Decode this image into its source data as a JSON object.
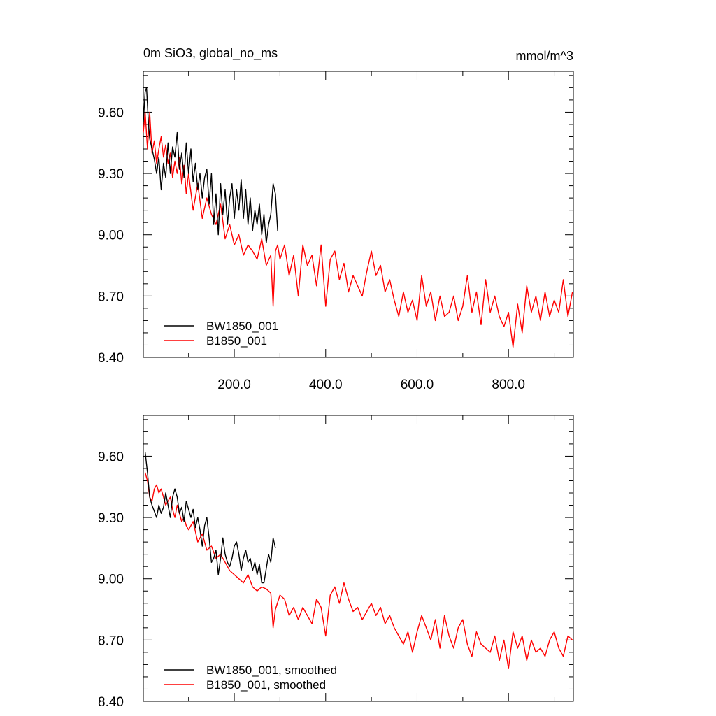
{
  "chart_data": [
    {
      "type": "line",
      "title": "0m SiO3, global_no_ms",
      "units": "mmol/m^3",
      "xlabel": "",
      "ylabel": "",
      "xlim": [
        1,
        942
      ],
      "ylim": [
        8.4,
        9.8
      ],
      "yticks": [
        8.4,
        8.7,
        9.0,
        9.3,
        9.6
      ],
      "ytick_labels": [
        "8.40",
        "8.70",
        "9.00",
        "9.30",
        "9.60"
      ],
      "xticks": [
        200,
        400,
        600,
        800
      ],
      "xtick_labels": [
        "200.0",
        "400.0",
        "600.0",
        "800.0"
      ],
      "legend_position": "bottom-left",
      "series": [
        {
          "name": "BW1850_001",
          "color": "#000000",
          "x": [
            1,
            5,
            8,
            12,
            15,
            20,
            25,
            30,
            35,
            40,
            45,
            50,
            55,
            60,
            65,
            70,
            75,
            80,
            85,
            90,
            95,
            100,
            105,
            110,
            115,
            120,
            125,
            130,
            135,
            140,
            145,
            150,
            155,
            160,
            165,
            170,
            175,
            180,
            185,
            190,
            195,
            200,
            205,
            210,
            215,
            220,
            225,
            230,
            235,
            240,
            245,
            250,
            255,
            260,
            265,
            270,
            275,
            280,
            285,
            290,
            295
          ],
          "y": [
            9.55,
            9.7,
            9.72,
            9.55,
            9.47,
            9.42,
            9.37,
            9.3,
            9.38,
            9.22,
            9.35,
            9.28,
            9.45,
            9.3,
            9.43,
            9.38,
            9.5,
            9.32,
            9.4,
            9.28,
            9.45,
            9.3,
            9.42,
            9.26,
            9.35,
            9.22,
            9.3,
            9.18,
            9.28,
            9.32,
            9.15,
            9.3,
            9.05,
            9.2,
            9.0,
            9.25,
            9.1,
            9.22,
            9.05,
            9.18,
            9.25,
            9.08,
            9.22,
            9.12,
            9.27,
            9.08,
            9.22,
            9.05,
            9.18,
            9.02,
            9.12,
            9.05,
            9.15,
            9.0,
            9.1,
            8.96,
            9.05,
            9.1,
            9.25,
            9.2,
            9.02
          ]
        },
        {
          "name": "B1850_001",
          "color": "#ff0000",
          "x": [
            1,
            5,
            10,
            15,
            20,
            25,
            30,
            35,
            40,
            45,
            50,
            55,
            60,
            65,
            70,
            75,
            80,
            85,
            90,
            95,
            100,
            110,
            120,
            130,
            140,
            150,
            160,
            170,
            180,
            190,
            200,
            210,
            220,
            230,
            240,
            250,
            260,
            270,
            280,
            285,
            290,
            295,
            300,
            310,
            320,
            330,
            340,
            350,
            360,
            370,
            380,
            390,
            400,
            410,
            420,
            430,
            440,
            450,
            460,
            470,
            480,
            490,
            500,
            510,
            520,
            530,
            540,
            550,
            560,
            570,
            580,
            590,
            600,
            610,
            620,
            630,
            640,
            650,
            660,
            670,
            680,
            690,
            700,
            710,
            720,
            730,
            740,
            750,
            760,
            770,
            780,
            790,
            800,
            810,
            820,
            830,
            840,
            850,
            860,
            870,
            880,
            890,
            900,
            910,
            920,
            930,
            940
          ],
          "y": [
            9.5,
            9.6,
            9.42,
            9.6,
            9.4,
            9.46,
            9.35,
            9.42,
            9.48,
            9.38,
            9.44,
            9.35,
            9.4,
            9.28,
            9.36,
            9.3,
            9.38,
            9.25,
            9.34,
            9.2,
            9.3,
            9.12,
            9.25,
            9.08,
            9.18,
            9.1,
            9.05,
            9.15,
            8.98,
            9.05,
            8.95,
            9.0,
            8.9,
            8.95,
            8.92,
            8.88,
            8.98,
            8.85,
            8.9,
            8.65,
            8.92,
            8.95,
            8.88,
            8.95,
            8.8,
            8.9,
            8.7,
            8.95,
            8.85,
            8.9,
            8.75,
            8.95,
            8.65,
            8.88,
            8.92,
            8.78,
            8.86,
            8.72,
            8.8,
            8.75,
            8.7,
            8.82,
            8.92,
            8.8,
            8.85,
            8.72,
            8.78,
            8.68,
            8.6,
            8.72,
            8.62,
            8.68,
            8.58,
            8.8,
            8.65,
            8.72,
            8.58,
            8.7,
            8.6,
            8.62,
            8.7,
            8.58,
            8.65,
            8.8,
            8.62,
            8.72,
            8.56,
            8.78,
            8.62,
            8.7,
            8.6,
            8.55,
            8.62,
            8.45,
            8.66,
            8.52,
            8.75,
            8.62,
            8.7,
            8.58,
            8.72,
            8.6,
            8.68,
            8.62,
            8.78,
            8.6,
            8.72
          ]
        }
      ]
    },
    {
      "type": "line",
      "title": "",
      "xlabel": "",
      "ylabel": "",
      "xlim": [
        1,
        942
      ],
      "ylim": [
        8.4,
        9.8
      ],
      "yticks": [
        8.4,
        8.7,
        9.0,
        9.3,
        9.6
      ],
      "ytick_labels": [
        "8.40",
        "8.70",
        "9.00",
        "9.30",
        "9.60"
      ],
      "xticks": [
        200,
        400,
        600,
        800
      ],
      "legend_position": "bottom-left",
      "series": [
        {
          "name": "BW1850_001, smoothed",
          "color": "#000000",
          "x": [
            5,
            10,
            15,
            20,
            25,
            30,
            35,
            40,
            45,
            50,
            55,
            60,
            65,
            70,
            75,
            80,
            85,
            90,
            95,
            100,
            105,
            110,
            115,
            120,
            125,
            130,
            135,
            140,
            145,
            150,
            155,
            160,
            165,
            170,
            175,
            180,
            185,
            190,
            195,
            200,
            205,
            210,
            215,
            220,
            225,
            230,
            235,
            240,
            245,
            250,
            255,
            260,
            265,
            270,
            275,
            280,
            285,
            290
          ],
          "y": [
            9.62,
            9.52,
            9.4,
            9.36,
            9.33,
            9.3,
            9.36,
            9.32,
            9.35,
            9.42,
            9.36,
            9.3,
            9.4,
            9.44,
            9.4,
            9.32,
            9.35,
            9.28,
            9.38,
            9.34,
            9.3,
            9.34,
            9.25,
            9.3,
            9.24,
            9.16,
            9.26,
            9.3,
            9.2,
            9.08,
            9.1,
            9.14,
            9.02,
            9.1,
            9.2,
            9.12,
            9.08,
            9.06,
            9.1,
            9.16,
            9.18,
            9.12,
            9.04,
            9.1,
            9.14,
            9.08,
            9.1,
            9.04,
            9.08,
            9.02,
            9.07,
            8.98,
            8.98,
            9.05,
            9.12,
            9.08,
            9.2,
            9.15
          ]
        },
        {
          "name": "B1850_001, smoothed",
          "color": "#ff0000",
          "x": [
            5,
            10,
            15,
            20,
            25,
            30,
            35,
            40,
            45,
            50,
            55,
            60,
            65,
            70,
            75,
            80,
            85,
            90,
            95,
            100,
            110,
            120,
            130,
            140,
            150,
            160,
            170,
            180,
            190,
            200,
            210,
            220,
            230,
            240,
            250,
            260,
            270,
            280,
            285,
            290,
            300,
            310,
            320,
            330,
            340,
            350,
            360,
            370,
            380,
            390,
            400,
            410,
            420,
            430,
            440,
            450,
            460,
            470,
            480,
            490,
            500,
            510,
            520,
            530,
            540,
            550,
            560,
            570,
            580,
            590,
            600,
            610,
            620,
            630,
            640,
            650,
            660,
            670,
            680,
            690,
            700,
            710,
            720,
            730,
            740,
            750,
            760,
            770,
            780,
            790,
            800,
            810,
            820,
            830,
            840,
            850,
            860,
            870,
            880,
            890,
            900,
            910,
            920,
            930,
            940
          ],
          "y": [
            9.52,
            9.48,
            9.4,
            9.38,
            9.44,
            9.46,
            9.42,
            9.44,
            9.4,
            9.36,
            9.38,
            9.4,
            9.34,
            9.3,
            9.36,
            9.32,
            9.28,
            9.3,
            9.26,
            9.24,
            9.28,
            9.18,
            9.22,
            9.14,
            9.16,
            9.1,
            9.12,
            9.08,
            9.04,
            9.02,
            9.0,
            8.98,
            9.02,
            8.96,
            8.94,
            8.96,
            8.95,
            8.93,
            8.76,
            8.85,
            8.92,
            8.9,
            8.82,
            8.86,
            8.8,
            8.86,
            8.82,
            8.78,
            8.9,
            8.86,
            8.72,
            8.92,
            8.96,
            8.88,
            8.98,
            8.9,
            8.84,
            8.86,
            8.8,
            8.84,
            8.88,
            8.82,
            8.86,
            8.78,
            8.82,
            8.76,
            8.72,
            8.68,
            8.74,
            8.64,
            8.74,
            8.82,
            8.76,
            8.7,
            8.8,
            8.66,
            8.82,
            8.72,
            8.66,
            8.76,
            8.8,
            8.68,
            8.62,
            8.74,
            8.68,
            8.66,
            8.64,
            8.72,
            8.6,
            8.7,
            8.56,
            8.74,
            8.66,
            8.72,
            8.6,
            8.7,
            8.64,
            8.66,
            8.62,
            8.7,
            8.74,
            8.66,
            8.62,
            8.72,
            8.7
          ]
        }
      ]
    }
  ]
}
